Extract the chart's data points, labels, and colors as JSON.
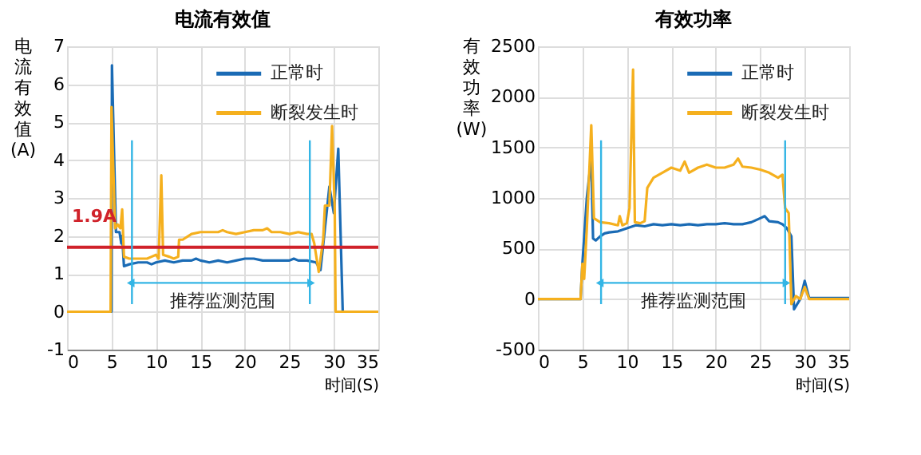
{
  "chart_data": [
    {
      "type": "line",
      "title": "电流有效值",
      "xlabel": "时间(S)",
      "ylabel": "电流有效值(A)",
      "xlim": [
        0,
        35
      ],
      "xticks": [
        0,
        5,
        10,
        15,
        20,
        25,
        30,
        35
      ],
      "ylim": [
        -1,
        7
      ],
      "yticks": [
        -1,
        0,
        1,
        2,
        3,
        4,
        5,
        6,
        7
      ],
      "grid": true,
      "legend": "top right",
      "series": [
        {
          "name": "正常时",
          "color": "#1a6bb5",
          "x": [
            0,
            5,
            5.05,
            5.5,
            5.9,
            6.1,
            6.2,
            6.4,
            7,
            8,
            9,
            9.5,
            10,
            11,
            12,
            13,
            14,
            14.5,
            15,
            16,
            17,
            18,
            19,
            20,
            21,
            22,
            23,
            24,
            25,
            25.5,
            26,
            27,
            28,
            28.5,
            29.5,
            30,
            30.5,
            31,
            35
          ],
          "values": [
            0,
            0,
            6.5,
            2.1,
            2.1,
            1.8,
            2.0,
            1.2,
            1.25,
            1.3,
            1.3,
            1.25,
            1.3,
            1.35,
            1.3,
            1.35,
            1.35,
            1.4,
            1.35,
            1.3,
            1.35,
            1.3,
            1.35,
            1.4,
            1.4,
            1.35,
            1.35,
            1.35,
            1.35,
            1.4,
            1.35,
            1.35,
            1.3,
            1.1,
            3.3,
            2.6,
            4.3,
            0,
            0
          ]
        },
        {
          "name": "断裂发生时",
          "color": "#f5b01e",
          "x": [
            0,
            4.9,
            5.0,
            5.4,
            5.7,
            6.0,
            6.2,
            6.4,
            7,
            8,
            9,
            9.5,
            10,
            10.3,
            10.6,
            10.8,
            11.5,
            12,
            12.5,
            12.6,
            13,
            14,
            15,
            16,
            17,
            17.5,
            18,
            19,
            20,
            21,
            22,
            22.5,
            23,
            24,
            25,
            26,
            27,
            27.5,
            27.8,
            28.3,
            28.8,
            29,
            29.5,
            29.8,
            30.1,
            30.2,
            35
          ],
          "values": [
            0,
            0,
            5.4,
            2.2,
            2.3,
            2.2,
            2.7,
            1.45,
            1.4,
            1.4,
            1.4,
            1.45,
            1.5,
            1.4,
            3.6,
            1.5,
            1.45,
            1.4,
            1.45,
            1.9,
            1.9,
            2.05,
            2.1,
            2.1,
            2.1,
            2.15,
            2.1,
            2.05,
            2.1,
            2.15,
            2.15,
            2.2,
            2.1,
            2.1,
            2.05,
            2.1,
            2.05,
            2.05,
            1.8,
            1.05,
            1.9,
            2.8,
            2.8,
            4.9,
            2.7,
            0,
            0
          ]
        }
      ],
      "ref_lines": [
        {
          "axis": "y",
          "value": 1.7,
          "label": "1.9A",
          "color": "#d0222a"
        },
        {
          "axis": "x",
          "value": 7.3,
          "color": "#33b5e5"
        },
        {
          "axis": "x",
          "value": 27.3,
          "color": "#33b5e5"
        }
      ],
      "annotations": [
        "推荐监测范围"
      ]
    },
    {
      "type": "line",
      "title": "有效功率",
      "xlabel": "时间(S)",
      "ylabel": "有效功率(W)",
      "xlim": [
        0,
        35
      ],
      "xticks": [
        0,
        5,
        10,
        15,
        20,
        25,
        30,
        35
      ],
      "ylim": [
        -500,
        2500
      ],
      "yticks": [
        -500,
        0,
        500,
        1000,
        1500,
        2000,
        2500
      ],
      "grid": true,
      "legend": "top right",
      "series": [
        {
          "name": "正常时",
          "color": "#1a6bb5",
          "x": [
            0,
            4.8,
            5.0,
            5.5,
            6.0,
            6.2,
            6.5,
            7,
            7.5,
            8,
            9,
            10,
            11,
            12,
            13,
            14,
            15,
            16,
            17,
            18,
            19,
            20,
            21,
            22,
            23,
            24,
            25,
            25.5,
            26,
            27,
            27.5,
            28,
            28.5,
            28.8,
            29.5,
            30,
            30.5,
            35
          ],
          "values": [
            0,
            0,
            350,
            1000,
            1400,
            600,
            580,
            620,
            650,
            660,
            670,
            700,
            730,
            720,
            740,
            730,
            740,
            730,
            740,
            730,
            740,
            740,
            750,
            740,
            740,
            760,
            800,
            820,
            770,
            760,
            740,
            700,
            620,
            -100,
            0,
            180,
            10,
            10
          ]
        },
        {
          "name": "断裂发生时",
          "color": "#f5b01e",
          "x": [
            0,
            4.8,
            5.0,
            5.2,
            5.5,
            6.0,
            6.3,
            7,
            8,
            9,
            9.2,
            9.5,
            10,
            10.3,
            10.7,
            10.9,
            11.5,
            12,
            12.3,
            13,
            14,
            15,
            16,
            16.5,
            17,
            18,
            19,
            20,
            21,
            22,
            22.5,
            23,
            24,
            25,
            26,
            27,
            27.5,
            27.8,
            28.2,
            28.5,
            29,
            29.5,
            30,
            30.5,
            35
          ],
          "values": [
            0,
            0,
            350,
            200,
            700,
            1720,
            800,
            760,
            750,
            730,
            820,
            730,
            750,
            900,
            2270,
            760,
            750,
            770,
            1100,
            1200,
            1250,
            1300,
            1270,
            1360,
            1250,
            1300,
            1330,
            1300,
            1300,
            1330,
            1390,
            1310,
            1300,
            1280,
            1250,
            1200,
            1230,
            900,
            850,
            -50,
            30,
            0,
            120,
            0,
            0
          ]
        }
      ],
      "ref_lines": [
        {
          "axis": "x",
          "value": 7.1,
          "color": "#33b5e5"
        },
        {
          "axis": "x",
          "value": 27.8,
          "color": "#33b5e5"
        }
      ],
      "annotations": [
        "推荐监测范围"
      ]
    }
  ]
}
